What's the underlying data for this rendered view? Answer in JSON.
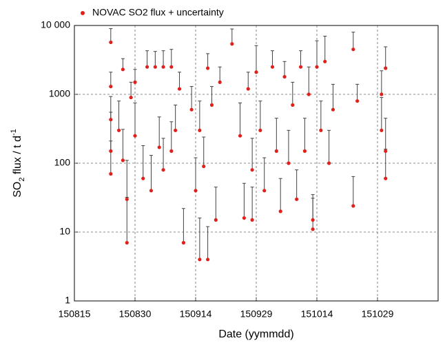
{
  "chart_data": {
    "type": "scatter",
    "y_label": [
      "SO",
      "2",
      " flux / t d",
      "-1"
    ],
    "x_label": "Date (yymmdd)",
    "log_y": true,
    "grid": true,
    "legend": "top-left",
    "xlim": [
      "150815",
      "151113"
    ],
    "xticks": [
      "150815",
      "150830",
      "150914",
      "150929",
      "151014",
      "151029"
    ],
    "ylim": [
      1,
      10000
    ],
    "yticks": [
      1,
      10,
      100,
      1000,
      {
        "value": 10000,
        "label": "10 000"
      }
    ],
    "series": [
      {
        "name": "NOVAC SO2 flux + uncertainty",
        "color": "#e0201b",
        "error_color": "#404040",
        "x": [
          "150824",
          "150824",
          "150824",
          "150824",
          "150824",
          "150826",
          "150827",
          "150827",
          "150828",
          "150828",
          "150829",
          "150830",
          "150830",
          "150901",
          "150902",
          "150903",
          "150904",
          "150905",
          "150906",
          "150906",
          "150908",
          "150908",
          "150909",
          "150910",
          "150911",
          "150913",
          "150914",
          "150915",
          "150915",
          "150916",
          "150917",
          "150917",
          "150918",
          "150919",
          "150920",
          "150923",
          "150925",
          "150926",
          "150927",
          "150928",
          "150928",
          "150929",
          "150930",
          "151001",
          "151003",
          "151004",
          "151005",
          "151006",
          "151007",
          "151008",
          "151009",
          "151010",
          "151011",
          "151012",
          "151013",
          "151013",
          "151014",
          "151015",
          "151016",
          "151017",
          "151018",
          "151023",
          "151023",
          "151024",
          "151030",
          "151030",
          "151031",
          "151031",
          "151031"
        ],
        "values": [
          5700,
          1300,
          430,
          150,
          70,
          300,
          2300,
          110,
          30,
          7,
          900,
          1500,
          250,
          60,
          2500,
          40,
          2500,
          170,
          2500,
          80,
          2500,
          150,
          300,
          1200,
          7,
          600,
          40,
          4,
          300,
          90,
          2400,
          4,
          700,
          15,
          1500,
          5400,
          250,
          16,
          1200,
          80,
          15,
          2100,
          300,
          40,
          2500,
          150,
          20,
          1800,
          100,
          700,
          30,
          2500,
          150,
          1000,
          15,
          11,
          2500,
          300,
          3000,
          100,
          600,
          4500,
          24,
          800,
          1000,
          300,
          2400,
          150,
          60
        ],
        "errors": [
          3300,
          800,
          500,
          400,
          140,
          500,
          1000,
          200,
          80,
          25,
          600,
          800,
          500,
          120,
          1800,
          90,
          1700,
          300,
          1800,
          150,
          2000,
          250,
          400,
          900,
          15,
          700,
          80,
          12,
          500,
          150,
          1500,
          8,
          600,
          30,
          1000,
          3500,
          500,
          35,
          900,
          150,
          30,
          3000,
          500,
          80,
          1800,
          300,
          40,
          1200,
          200,
          800,
          50,
          1800,
          300,
          1500,
          20,
          20,
          3500,
          500,
          4000,
          200,
          800,
          3500,
          40,
          600,
          1200,
          600,
          2500,
          300,
          100
        ]
      }
    ]
  }
}
